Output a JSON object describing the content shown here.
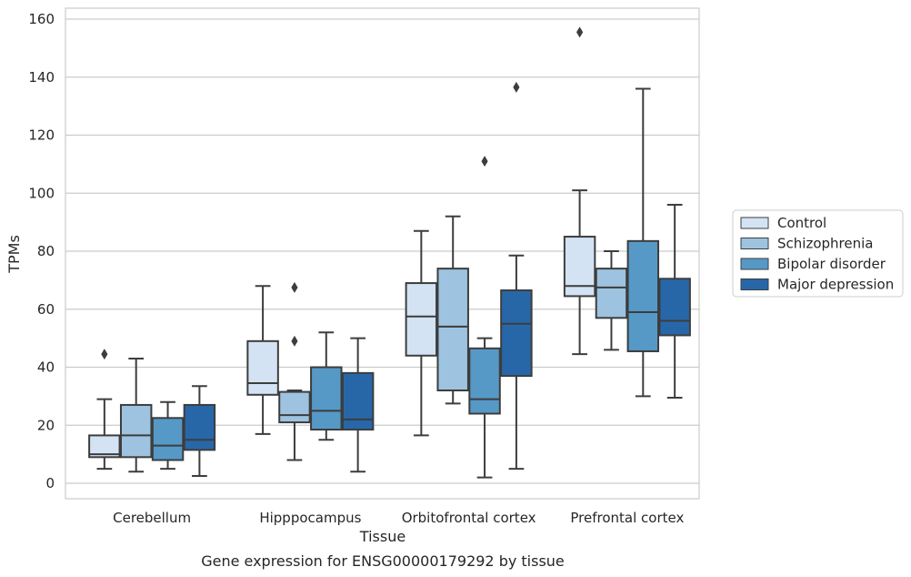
{
  "chart_data": {
    "type": "box",
    "caption": "Gene expression for ENSG00000179292 by tissue",
    "xlabel": "Tissue",
    "ylabel": "TPMs",
    "ylim": [
      -5,
      165
    ],
    "yticks": [
      0,
      20,
      40,
      60,
      80,
      100,
      120,
      140,
      160
    ],
    "grid": true,
    "legend_position": "right",
    "categories": [
      "Cerebellum",
      "Hipppocampus",
      "Orbitofrontal cortex",
      "Prefrontal cortex"
    ],
    "series": [
      {
        "name": "Control",
        "color": "#d4e3f3",
        "boxes": [
          {
            "whislo": 5,
            "q1": 9,
            "median": 10,
            "q3": 16.5,
            "whishi": 29,
            "fliers": [
              44.5
            ]
          },
          {
            "whislo": 17,
            "q1": 30.5,
            "median": 34.5,
            "q3": 49,
            "whishi": 68,
            "fliers": []
          },
          {
            "whislo": 16.5,
            "q1": 44,
            "median": 57.5,
            "q3": 69,
            "whishi": 87,
            "fliers": []
          },
          {
            "whislo": 44.5,
            "q1": 64.5,
            "median": 68,
            "q3": 85,
            "whishi": 101,
            "fliers": [
              155.5
            ]
          }
        ]
      },
      {
        "name": "Schizophrenia",
        "color": "#9dc3e0",
        "boxes": [
          {
            "whislo": 4,
            "q1": 9,
            "median": 16.5,
            "q3": 27,
            "whishi": 43,
            "fliers": []
          },
          {
            "whislo": 8,
            "q1": 21,
            "median": 23.5,
            "q3": 31.5,
            "whishi": 32,
            "fliers": [
              49,
              67.5
            ]
          },
          {
            "whislo": 27.5,
            "q1": 32,
            "median": 54,
            "q3": 74,
            "whishi": 92,
            "fliers": []
          },
          {
            "whislo": 46,
            "q1": 57,
            "median": 67.5,
            "q3": 74,
            "whishi": 80,
            "fliers": []
          }
        ]
      },
      {
        "name": "Bipolar disorder",
        "color": "#5699c7",
        "boxes": [
          {
            "whislo": 5,
            "q1": 8,
            "median": 13,
            "q3": 22.5,
            "whishi": 28,
            "fliers": []
          },
          {
            "whislo": 15,
            "q1": 18.5,
            "median": 25,
            "q3": 40,
            "whishi": 52,
            "fliers": []
          },
          {
            "whislo": 2,
            "q1": 24,
            "median": 29,
            "q3": 46.5,
            "whishi": 50,
            "fliers": [
              111
            ]
          },
          {
            "whislo": 30,
            "q1": 45.5,
            "median": 59,
            "q3": 83.5,
            "whishi": 136,
            "fliers": []
          }
        ]
      },
      {
        "name": "Major depression",
        "color": "#2767a8",
        "boxes": [
          {
            "whislo": 2.5,
            "q1": 11.5,
            "median": 15,
            "q3": 27,
            "whishi": 33.5,
            "fliers": []
          },
          {
            "whislo": 4,
            "q1": 18.5,
            "median": 22,
            "q3": 38,
            "whishi": 50,
            "fliers": []
          },
          {
            "whislo": 5,
            "q1": 37,
            "median": 55,
            "q3": 66.5,
            "whishi": 78.5,
            "fliers": [
              136.5
            ]
          },
          {
            "whislo": 29.5,
            "q1": 51,
            "median": 56,
            "q3": 70.5,
            "whishi": 96,
            "fliers": []
          }
        ]
      }
    ]
  }
}
